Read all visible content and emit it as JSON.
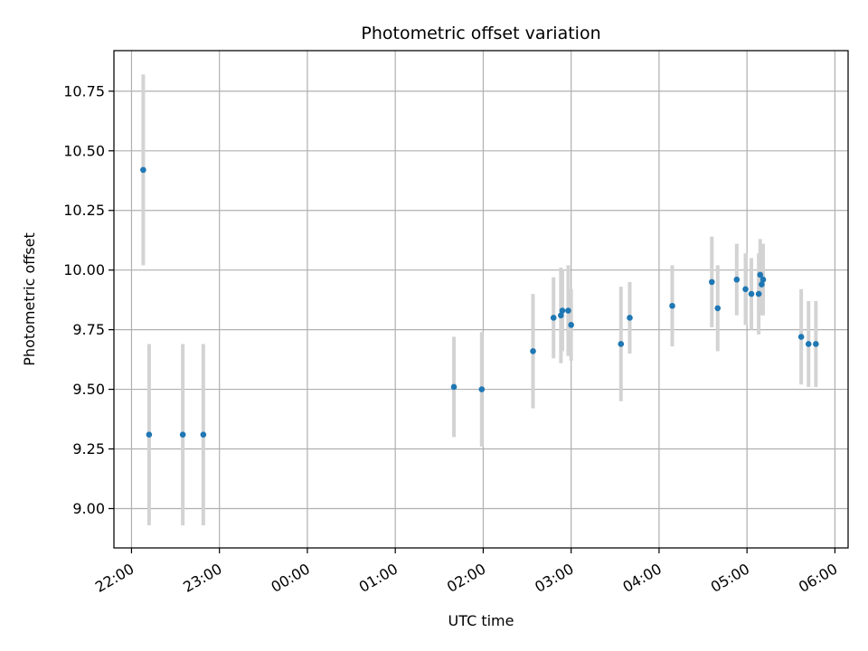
{
  "chart_data": {
    "type": "scatter",
    "title": "Photometric offset variation",
    "xlabel": "UTC time",
    "ylabel": "Photometric offset",
    "ylim": [
      8.835,
      10.92
    ],
    "xlim": [
      "21:48",
      "06:09"
    ],
    "x_ticks": [
      "22:00",
      "23:00",
      "00:00",
      "01:00",
      "02:00",
      "03:00",
      "04:00",
      "05:00",
      "06:00"
    ],
    "y_ticks": [
      "9.00",
      "9.25",
      "9.50",
      "9.75",
      "10.00",
      "10.25",
      "10.50",
      "10.75"
    ],
    "grid": true,
    "legend": "none",
    "colors": {
      "point": "#1f77b4",
      "errorbar": "#d3d3d3",
      "grid": "#b0b0b0"
    },
    "points": [
      {
        "x": "22:08",
        "y": 10.42,
        "err": 0.4
      },
      {
        "x": "22:12",
        "y": 9.31,
        "err": 0.38
      },
      {
        "x": "22:35",
        "y": 9.31,
        "err": 0.38
      },
      {
        "x": "22:49",
        "y": 9.31,
        "err": 0.38
      },
      {
        "x": "01:40",
        "y": 9.51,
        "err": 0.21
      },
      {
        "x": "01:59",
        "y": 9.5,
        "err": 0.24
      },
      {
        "x": "02:34",
        "y": 9.66,
        "err": 0.24
      },
      {
        "x": "02:48",
        "y": 9.8,
        "err": 0.17
      },
      {
        "x": "02:53",
        "y": 9.81,
        "err": 0.2
      },
      {
        "x": "02:54",
        "y": 9.83,
        "err": 0.17
      },
      {
        "x": "02:58",
        "y": 9.83,
        "err": 0.19
      },
      {
        "x": "03:00",
        "y": 9.77,
        "err": 0.15
      },
      {
        "x": "03:34",
        "y": 9.69,
        "err": 0.24
      },
      {
        "x": "03:40",
        "y": 9.8,
        "err": 0.15
      },
      {
        "x": "04:09",
        "y": 9.85,
        "err": 0.17
      },
      {
        "x": "04:36",
        "y": 9.95,
        "err": 0.19
      },
      {
        "x": "04:40",
        "y": 9.84,
        "err": 0.18
      },
      {
        "x": "04:53",
        "y": 9.96,
        "err": 0.15
      },
      {
        "x": "04:59",
        "y": 9.92,
        "err": 0.15
      },
      {
        "x": "05:03",
        "y": 9.9,
        "err": 0.15
      },
      {
        "x": "05:08",
        "y": 9.9,
        "err": 0.17
      },
      {
        "x": "05:09",
        "y": 9.98,
        "err": 0.15
      },
      {
        "x": "05:10",
        "y": 9.94,
        "err": 0.13
      },
      {
        "x": "05:11",
        "y": 9.96,
        "err": 0.15
      },
      {
        "x": "05:37",
        "y": 9.72,
        "err": 0.2
      },
      {
        "x": "05:42",
        "y": 9.69,
        "err": 0.18
      },
      {
        "x": "05:47",
        "y": 9.69,
        "err": 0.18
      }
    ]
  }
}
